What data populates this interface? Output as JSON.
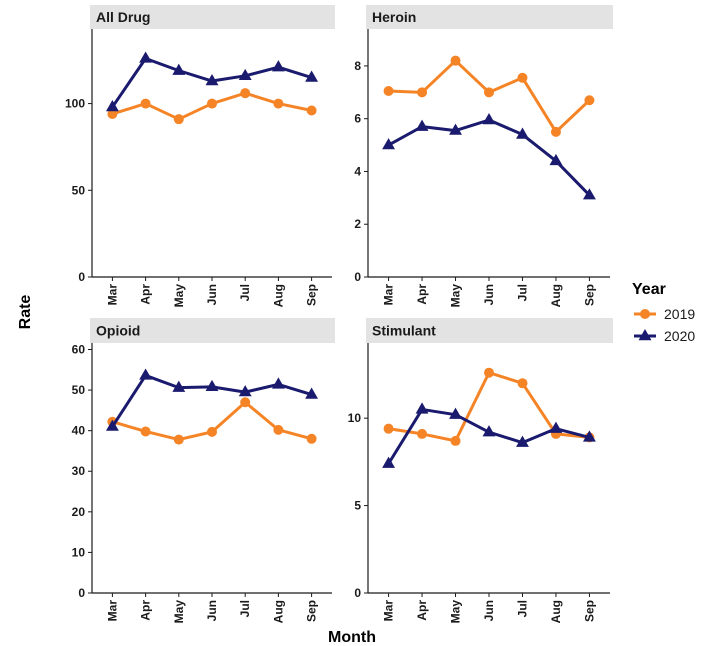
{
  "chart_data": {
    "type": "line",
    "xlabel": "Month",
    "ylabel": "Rate",
    "legend": {
      "title": "Year",
      "placement": "right",
      "entries": [
        "2019",
        "2020"
      ]
    },
    "colors": {
      "2019": "#f58426",
      "2020": "#1a1a6e"
    },
    "markers": {
      "2019": "circle",
      "2020": "triangle"
    },
    "grid": false,
    "categories": [
      "Mar",
      "Apr",
      "May",
      "Jun",
      "Jul",
      "Aug",
      "Sep"
    ],
    "panels": [
      {
        "title": "All Drug",
        "ylim": [
          0,
          143
        ],
        "yticks": [
          0,
          50,
          100
        ],
        "series": [
          {
            "name": "2019",
            "values": [
              94,
              100,
              91,
              100,
              106,
              100,
              96
            ]
          },
          {
            "name": "2020",
            "values": [
              98,
              126,
              119,
              113,
              116,
              121,
              115
            ]
          }
        ]
      },
      {
        "title": "Heroin",
        "ylim": [
          0,
          9.4
        ],
        "yticks": [
          0,
          2,
          4,
          6,
          8
        ],
        "series": [
          {
            "name": "2019",
            "values": [
              7.05,
              7.0,
              8.2,
              7.0,
              7.55,
              5.5,
              6.7
            ]
          },
          {
            "name": "2020",
            "values": [
              5.0,
              5.7,
              5.55,
              5.95,
              5.4,
              4.4,
              3.1
            ]
          }
        ]
      },
      {
        "title": "Opioid",
        "ylim": [
          0,
          61.6
        ],
        "yticks": [
          0,
          10,
          20,
          30,
          40,
          50,
          60
        ],
        "series": [
          {
            "name": "2019",
            "values": [
              42.2,
              39.8,
              37.8,
              39.7,
              47.0,
              40.2,
              38.0
            ]
          },
          {
            "name": "2020",
            "values": [
              41.0,
              53.6,
              50.6,
              50.8,
              49.5,
              51.4,
              48.9
            ]
          }
        ]
      },
      {
        "title": "Stimulant",
        "ylim": [
          0,
          14.3
        ],
        "yticks": [
          0,
          5,
          10
        ],
        "series": [
          {
            "name": "2019",
            "values": [
              9.4,
              9.1,
              8.7,
              12.6,
              12.0,
              9.1,
              8.9
            ]
          },
          {
            "name": "2020",
            "values": [
              7.4,
              10.5,
              10.2,
              9.2,
              8.6,
              9.4,
              8.9
            ]
          }
        ]
      }
    ]
  }
}
